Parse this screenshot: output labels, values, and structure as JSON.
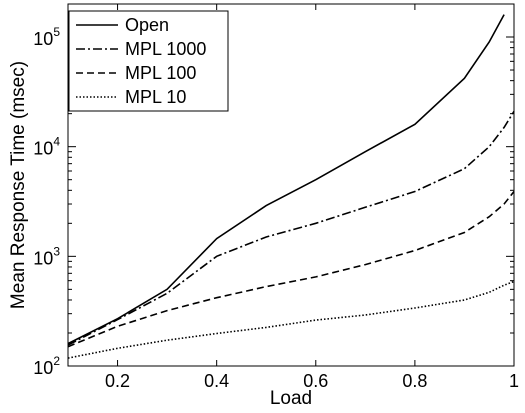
{
  "chart_data": {
    "type": "line",
    "xlabel": "Load",
    "ylabel": "Mean Response Time (msec)",
    "xlim": [
      0.1,
      1.0
    ],
    "ylim": [
      100,
      200000
    ],
    "y_scale": "log",
    "grid": false,
    "legend_position": "top-left",
    "x_ticks": [
      {
        "value": 0.2,
        "label": "0.2"
      },
      {
        "value": 0.4,
        "label": "0.4"
      },
      {
        "value": 0.6,
        "label": "0.6"
      },
      {
        "value": 0.8,
        "label": "0.8"
      },
      {
        "value": 1.0,
        "label": "1"
      }
    ],
    "y_ticks": [
      {
        "value": 100,
        "base": "10",
        "exp": "2"
      },
      {
        "value": 1000,
        "base": "10",
        "exp": "3"
      },
      {
        "value": 10000,
        "base": "10",
        "exp": "4"
      },
      {
        "value": 100000,
        "base": "10",
        "exp": "5"
      }
    ],
    "series": [
      {
        "name": "Open",
        "style": "solid",
        "color": "#000000",
        "x": [
          0.1,
          0.2,
          0.3,
          0.4,
          0.5,
          0.6,
          0.7,
          0.8,
          0.9,
          0.95,
          0.98
        ],
        "values": [
          160,
          270,
          500,
          1450,
          2900,
          5000,
          9000,
          16000,
          42000,
          90000,
          160000
        ]
      },
      {
        "name": "MPL 1000",
        "style": "dashdot",
        "color": "#000000",
        "x": [
          0.1,
          0.2,
          0.3,
          0.4,
          0.5,
          0.6,
          0.7,
          0.8,
          0.9,
          0.95,
          0.98,
          1.0
        ],
        "values": [
          155,
          265,
          460,
          1000,
          1500,
          2000,
          2800,
          3900,
          6300,
          10000,
          15000,
          21000
        ]
      },
      {
        "name": "MPL 100",
        "style": "dashed",
        "color": "#000000",
        "x": [
          0.1,
          0.2,
          0.3,
          0.4,
          0.5,
          0.6,
          0.7,
          0.8,
          0.9,
          0.95,
          0.98,
          1.0
        ],
        "values": [
          150,
          230,
          320,
          420,
          530,
          650,
          840,
          1130,
          1650,
          2300,
          3000,
          3900
        ]
      },
      {
        "name": "MPL 10",
        "style": "dotted",
        "color": "#000000",
        "x": [
          0.1,
          0.2,
          0.3,
          0.4,
          0.5,
          0.6,
          0.7,
          0.8,
          0.9,
          0.95,
          0.98,
          1.0
        ],
        "values": [
          118,
          145,
          172,
          198,
          225,
          262,
          292,
          338,
          400,
          470,
          545,
          590
        ]
      }
    ]
  }
}
